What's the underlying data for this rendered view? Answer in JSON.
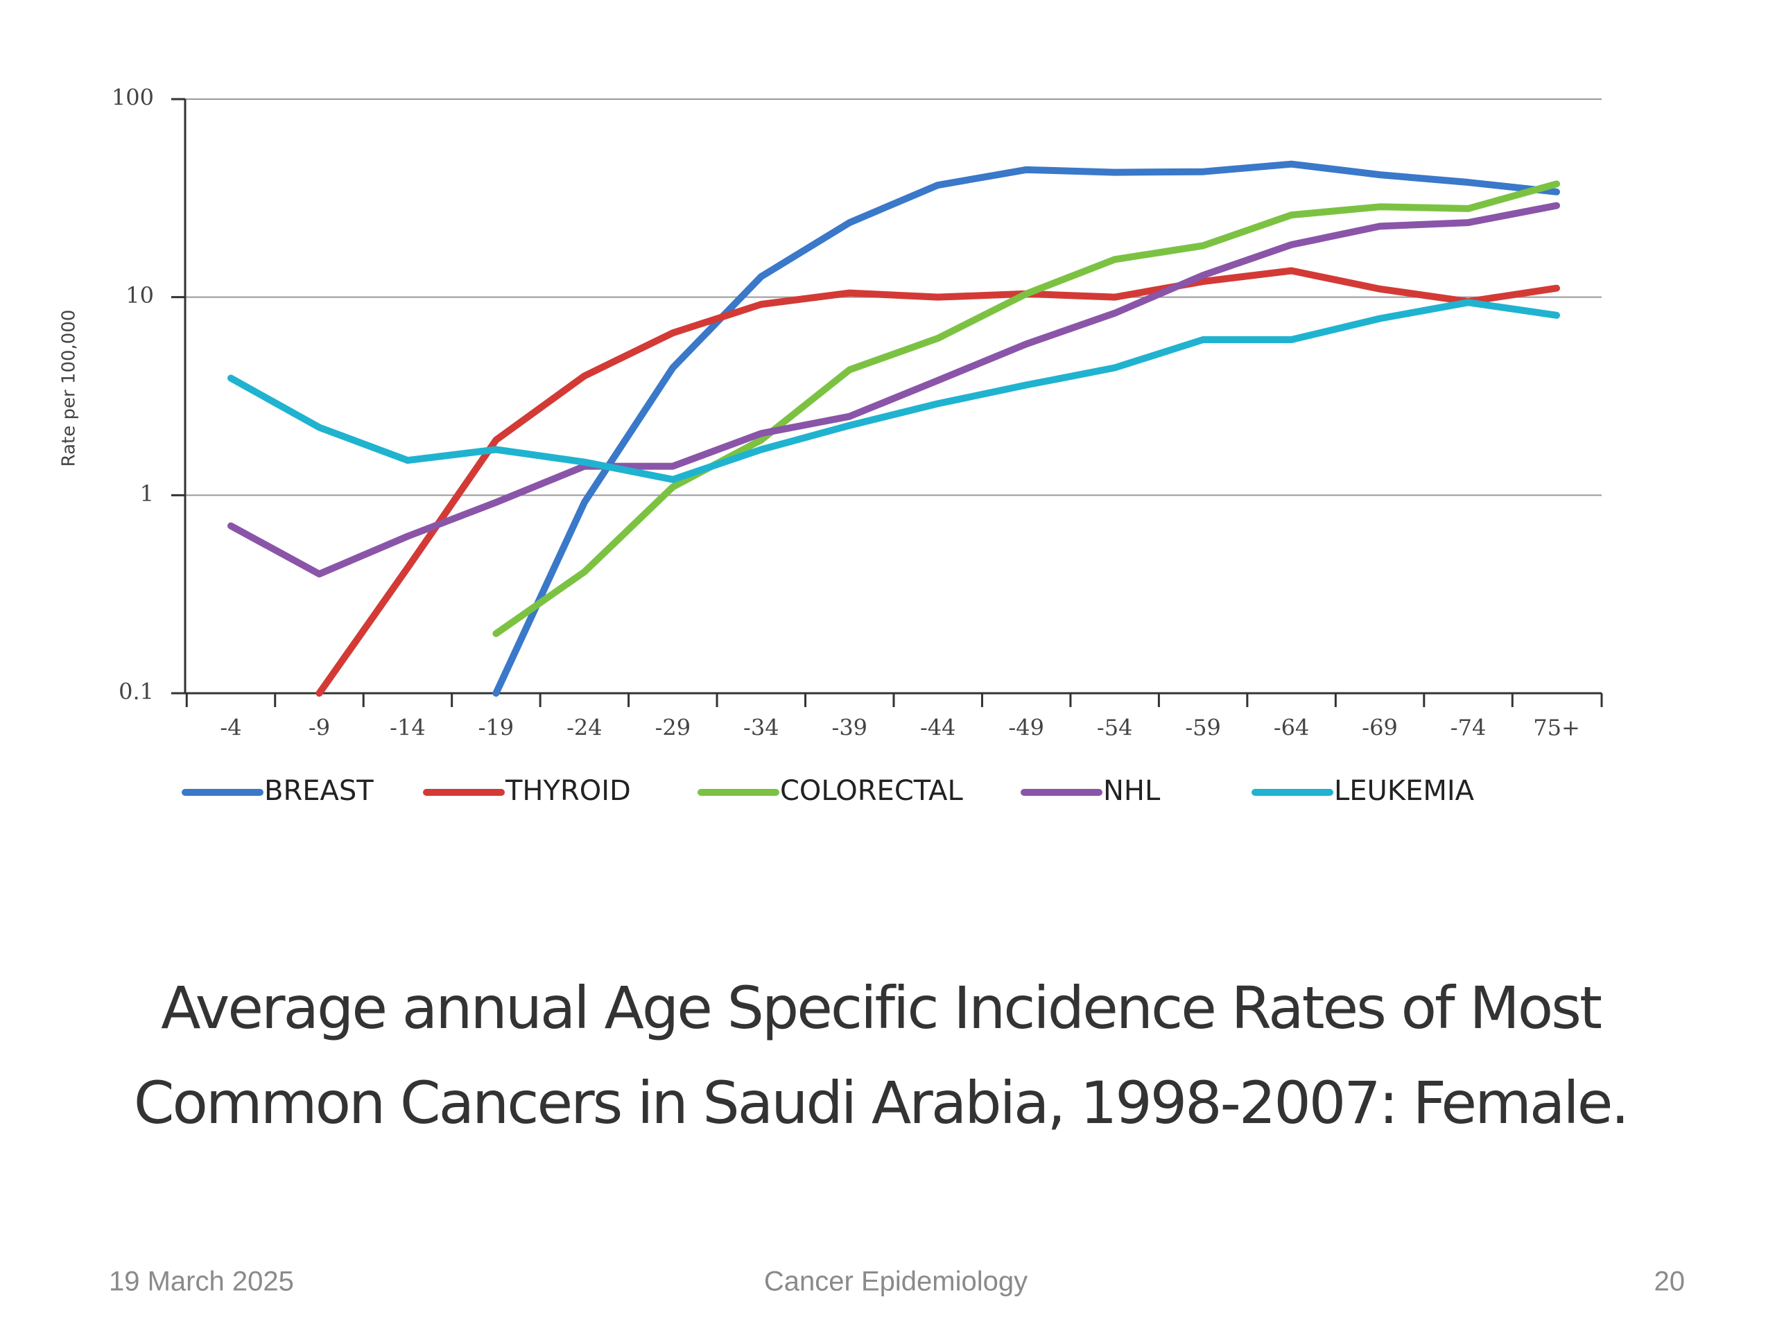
{
  "chart_data": {
    "type": "line",
    "y_label": "Rate per 100,000",
    "categories": [
      "-4",
      "-9",
      "-14",
      "-19",
      "-24",
      "-29",
      "-34",
      "-39",
      "-44",
      "-49",
      "-54",
      "-59",
      "-64",
      "-69",
      "-74",
      "75+"
    ],
    "series": [
      {
        "name": "BREAST",
        "color": "#3a78c9",
        "values": [
          null,
          null,
          null,
          0.1,
          0.92,
          4.4,
          12.7,
          23.8,
          36.8,
          44,
          42.7,
          43,
          47,
          41.5,
          38,
          34
        ]
      },
      {
        "name": "THYROID",
        "color": "#d33a36",
        "values": [
          null,
          0.1,
          0.43,
          1.9,
          4.0,
          6.6,
          9.2,
          10.5,
          10,
          10.4,
          10,
          12,
          13.6,
          11,
          9.5,
          11.1
        ]
      },
      {
        "name": "COLORECTAL",
        "color": "#7cc242",
        "values": [
          null,
          null,
          null,
          0.2,
          0.41,
          1.1,
          1.9,
          4.3,
          6.2,
          10.4,
          15.5,
          18.2,
          26,
          28.6,
          28,
          37.3
        ]
      },
      {
        "name": "NHL",
        "color": "#8a55a8",
        "values": [
          0.7,
          0.4,
          0.62,
          0.92,
          1.4,
          1.4,
          2.05,
          2.5,
          3.8,
          5.8,
          8.3,
          12.9,
          18.4,
          22.8,
          23.8,
          29
        ]
      },
      {
        "name": "LEUKEMIA",
        "color": "#1fb3d0",
        "values": [
          3.9,
          2.2,
          1.5,
          1.7,
          1.47,
          1.2,
          1.7,
          2.25,
          2.9,
          3.6,
          4.4,
          6.1,
          6.1,
          7.8,
          9.4,
          8.1
        ]
      }
    ],
    "ylim": [
      0.1,
      100
    ],
    "yticks": [
      0.1,
      1,
      10,
      100
    ],
    "log_y": true,
    "grid": true,
    "caption": [
      "Average annual Age Specific Incidence Rates of Most",
      "Common Cancers in Saudi Arabia, 1998-2007: Female."
    ]
  },
  "footer": {
    "date": "19 March 2025",
    "center": "Cancer Epidemiology",
    "page": "20"
  }
}
